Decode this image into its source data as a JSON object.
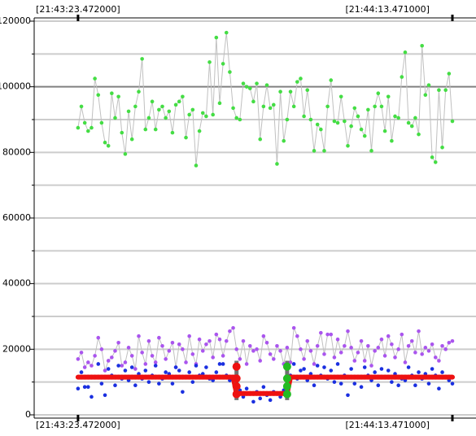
{
  "chart_data": {
    "type": "scatter",
    "xlim": [
      -13,
      118
    ],
    "xticks": [
      {
        "value": 0,
        "label": "[21:43:23.472000]"
      },
      {
        "value": 111,
        "label": "[21:44:13.471000]"
      }
    ],
    "ylim": [
      0,
      120000
    ],
    "yticks": [
      0,
      20000,
      40000,
      60000,
      80000,
      100000,
      120000
    ],
    "minor_yticks": [
      10000,
      30000,
      50000,
      70000,
      90000,
      110000
    ],
    "strong_grid": 100000,
    "grid": true,
    "series": [
      {
        "color": "#44dd44",
        "line": true,
        "line_color": "#c0c0c0",
        "values": [
          87500,
          94000,
          89000,
          86500,
          87500,
          102500,
          97500,
          89000,
          83000,
          82000,
          98000,
          90500,
          97000,
          86000,
          79500,
          92500,
          84000,
          94000,
          98500,
          108500,
          87000,
          90500,
          95500,
          87000,
          93000,
          94000,
          90500,
          92500,
          86000,
          94500,
          95500,
          97000,
          84500,
          91500,
          93000,
          76000,
          86500,
          92000,
          91000,
          107500,
          91500,
          115000,
          95000,
          107000,
          116500,
          104500,
          93500,
          90500,
          90000,
          101000,
          100000,
          99500,
          95500,
          101000,
          84000,
          94000,
          100500,
          93500,
          94500,
          76500,
          98500,
          83500,
          90000,
          98500,
          94000,
          101500,
          102500,
          91000,
          99000,
          90000,
          80500,
          88500,
          87000,
          80500,
          94000,
          102000,
          89500,
          89000,
          97000,
          89500,
          82000,
          88000,
          93500,
          91000,
          87000,
          85000,
          93000,
          80500,
          94000,
          98000,
          94000,
          86500,
          97000,
          83500,
          91000,
          90500,
          103000,
          110500,
          89000,
          88000,
          90500,
          85500,
          112500,
          97500,
          100500,
          78500,
          77000,
          99000,
          81500,
          99000,
          104000,
          89500
        ]
      },
      {
        "color": "#aa55ee",
        "line": true,
        "line_color": "#c0c0c0",
        "values": [
          17000,
          19000,
          14500,
          16000,
          15000,
          18000,
          23500,
          20000,
          13500,
          16500,
          17500,
          19500,
          22000,
          15000,
          16000,
          20500,
          18000,
          14000,
          24000,
          19000,
          15500,
          22500,
          18000,
          16000,
          23500,
          21000,
          17000,
          19500,
          22000,
          14500,
          21500,
          20000,
          16000,
          24000,
          18500,
          15500,
          23000,
          19500,
          21500,
          22500,
          17500,
          24500,
          23000,
          18000,
          22500,
          25500,
          26500,
          20000,
          17000,
          22500,
          15500,
          21000,
          19500,
          20000,
          16500,
          24000,
          22000,
          18500,
          17000,
          21000,
          19500,
          15500,
          20500,
          16000,
          26500,
          24000,
          20000,
          17000,
          22500,
          19500,
          15500,
          21000,
          25000,
          18500,
          24500,
          24500,
          17500,
          23000,
          19000,
          21000,
          25500,
          20500,
          16500,
          19000,
          22500,
          16500,
          21000,
          15000,
          19500,
          20500,
          23000,
          18000,
          24000,
          21500,
          17500,
          20000,
          24500,
          16000,
          21000,
          22500,
          19000,
          25500,
          18500,
          20500,
          19500,
          21500,
          17500,
          16500,
          21000,
          20000,
          22000,
          22500
        ]
      },
      {
        "color": "#1a2fe0",
        "line": false,
        "values": [
          8000,
          13000,
          8500,
          8500,
          5500,
          11500,
          15500,
          9500,
          6000,
          14000,
          12000,
          9000,
          15000,
          11000,
          13500,
          10500,
          14500,
          9000,
          12500,
          11000,
          13500,
          10000,
          12000,
          15000,
          9500,
          11000,
          13000,
          12500,
          9500,
          14500,
          13500,
          7000,
          11500,
          13000,
          10000,
          15000,
          12000,
          12500,
          14500,
          11000,
          10500,
          13000,
          15500,
          15500,
          12000,
          10500,
          11000,
          6500,
          7500,
          5500,
          8000,
          6500,
          4000,
          7000,
          5000,
          8500,
          6000,
          4500,
          7000,
          6500,
          5500,
          7500,
          8000,
          12000,
          15500,
          11000,
          13500,
          14000,
          10500,
          12500,
          9000,
          15000,
          12000,
          14500,
          11000,
          13500,
          10000,
          15500,
          9500,
          12000,
          6000,
          14000,
          9500,
          11500,
          8500,
          14500,
          12000,
          10500,
          13000,
          9000,
          14000,
          11500,
          13500,
          10000,
          12500,
          9000,
          11000,
          10500,
          14500,
          12000,
          9000,
          13000,
          11000,
          12500,
          9500,
          14000,
          12000,
          8000,
          13000,
          11500,
          10500,
          9500
        ]
      },
      {
        "color": "#ee1111",
        "line": true,
        "line_color": "#ee1111",
        "thick": true,
        "values": [
          11500,
          11500,
          11500,
          11500,
          11500,
          11500,
          11500,
          11500,
          11500,
          11500,
          11500,
          11500,
          11500,
          11500,
          11500,
          11500,
          11500,
          11500,
          11500,
          11500,
          11500,
          11500,
          11500,
          11500,
          11500,
          11500,
          11500,
          11500,
          11500,
          11500,
          11500,
          11500,
          11500,
          11500,
          11500,
          11500,
          11500,
          11500,
          11500,
          11500,
          11500,
          11500,
          11500,
          11500,
          11500,
          11500,
          11500,
          6500,
          6500,
          6500,
          6500,
          6500,
          6500,
          6500,
          6500,
          6500,
          6500,
          6500,
          6500,
          6500,
          6500,
          6500,
          6500,
          11500,
          11500,
          11500,
          11500,
          11500,
          11500,
          11500,
          11500,
          11500,
          11500,
          11500,
          11500,
          11500,
          11500,
          11500,
          11500,
          11500,
          11500,
          11500,
          11500,
          11500,
          11500,
          11500,
          11500,
          11500,
          11500,
          11500,
          11500,
          11500,
          11500,
          11500,
          11500,
          11500,
          11500,
          11500,
          11500,
          11500,
          11500,
          11500,
          11500,
          11500,
          11500,
          11500,
          11500,
          11500,
          11500,
          11500,
          11500,
          11500
        ]
      }
    ],
    "events": [
      {
        "x": 47,
        "low": 4500,
        "high": 16500,
        "color": "#ee1111"
      },
      {
        "x": 62,
        "low": 4500,
        "high": 16500,
        "color": "#22bb22"
      }
    ]
  }
}
